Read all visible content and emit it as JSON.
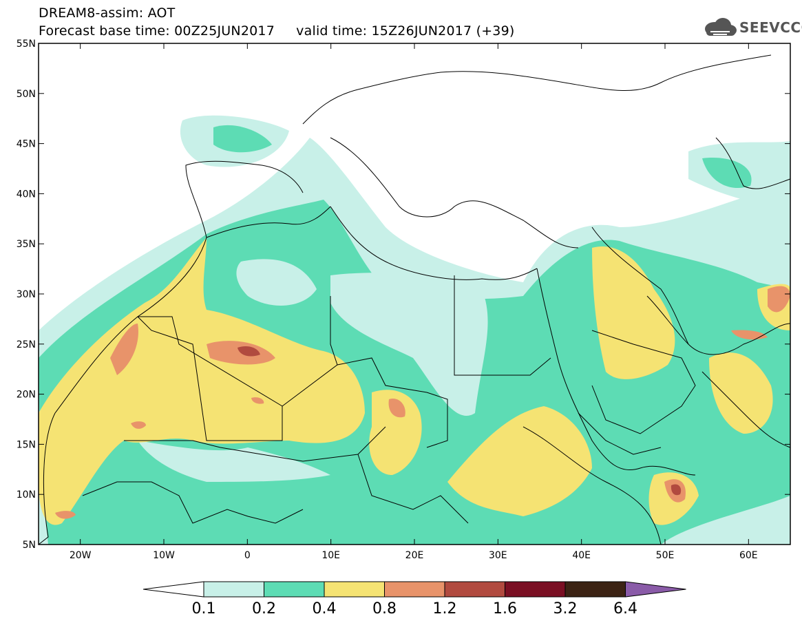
{
  "header": {
    "line1": "DREAM8-assim: AOT",
    "line2": "Forecast base time: 00Z25JUN2017     valid time: 15Z26JUN2017 (+39)",
    "logo_text": "SEEVCCC"
  },
  "map": {
    "lat_labels": [
      "55N",
      "50N",
      "45N",
      "40N",
      "35N",
      "30N",
      "25N",
      "20N",
      "15N",
      "10N",
      "5N"
    ],
    "lon_labels": [
      "20W",
      "10W",
      "0",
      "10E",
      "20E",
      "30E",
      "40E",
      "50E",
      "60E"
    ],
    "lat_range": [
      5,
      55
    ],
    "lon_range": [
      -25,
      65
    ]
  },
  "colorbar": {
    "levels": [
      "0.1",
      "0.2",
      "0.4",
      "0.8",
      "1.2",
      "1.6",
      "3.2",
      "6.4"
    ],
    "colors": [
      "#c8f0e8",
      "#5ddcb4",
      "#f5e373",
      "#e8936a",
      "#b14a3f",
      "#7a0f23",
      "#3c2314"
    ],
    "under_color": "#ffffff",
    "over_color": "#8a5ba8"
  }
}
